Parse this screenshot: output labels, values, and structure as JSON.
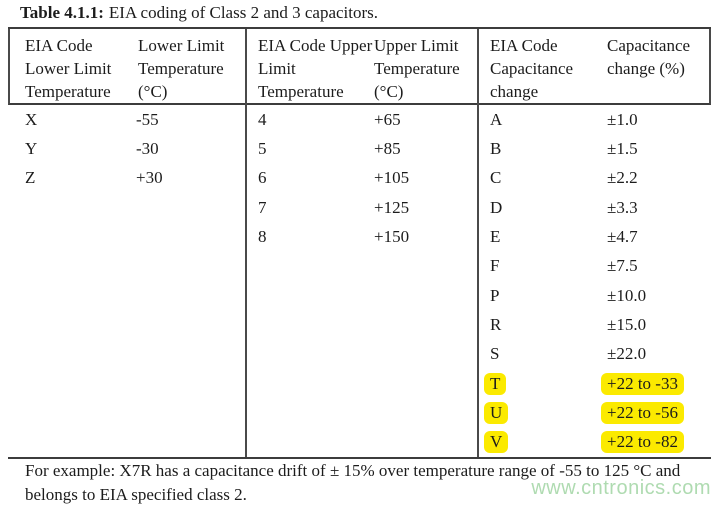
{
  "caption": {
    "label": "Table 4.1.1:",
    "text": "EIA coding of Class 2 and 3 capacitors."
  },
  "table": {
    "groups": [
      {
        "id": "lower-limit-temperature",
        "headers": [
          "EIA Code Lower Limit Temperature",
          "Lower Limit Temperature (°C)"
        ],
        "rows": [
          {
            "code": "X",
            "value": "-55",
            "highlight": false
          },
          {
            "code": "Y",
            "value": "-30",
            "highlight": false
          },
          {
            "code": "Z",
            "value": "+30",
            "highlight": false
          }
        ]
      },
      {
        "id": "upper-limit-temperature",
        "headers": [
          "EIA Code Upper Limit Temperature",
          "Upper Limit Temperature (°C)"
        ],
        "rows": [
          {
            "code": "4",
            "value": "+65",
            "highlight": false
          },
          {
            "code": "5",
            "value": "+85",
            "highlight": false
          },
          {
            "code": "6",
            "value": "+105",
            "highlight": false
          },
          {
            "code": "7",
            "value": "+125",
            "highlight": false
          },
          {
            "code": "8",
            "value": "+150",
            "highlight": false
          }
        ]
      },
      {
        "id": "capacitance-change",
        "headers": [
          "EIA Code Capacitance change",
          "Capacitance change (%)"
        ],
        "rows": [
          {
            "code": "A",
            "value": "±1.0",
            "highlight": false
          },
          {
            "code": "B",
            "value": "±1.5",
            "highlight": false
          },
          {
            "code": "C",
            "value": "±2.2",
            "highlight": false
          },
          {
            "code": "D",
            "value": "±3.3",
            "highlight": false
          },
          {
            "code": "E",
            "value": "±4.7",
            "highlight": false
          },
          {
            "code": "F",
            "value": "±7.5",
            "highlight": false
          },
          {
            "code": "P",
            "value": "±10.0",
            "highlight": false
          },
          {
            "code": "R",
            "value": "±15.0",
            "highlight": false
          },
          {
            "code": "S",
            "value": "±22.0",
            "highlight": false
          },
          {
            "code": "T",
            "value": "+22 to -33",
            "highlight": true
          },
          {
            "code": "U",
            "value": "+22 to -56",
            "highlight": true
          },
          {
            "code": "V",
            "value": "+22 to -82",
            "highlight": true
          }
        ]
      }
    ]
  },
  "footer_lines": [
    "For example: X7R has a capacitance drift of ± 15% over temperature range of -55 to 125 °C and",
    "belongs to EIA specified class 2."
  ],
  "watermark": "www.cntronics.com",
  "colors": {
    "highlight": "#FBEA00",
    "watermark_green": "#AFDBB1",
    "rule": "#3C3C3C",
    "divider": "#4A4A4A",
    "text": "#1C1C1C"
  }
}
